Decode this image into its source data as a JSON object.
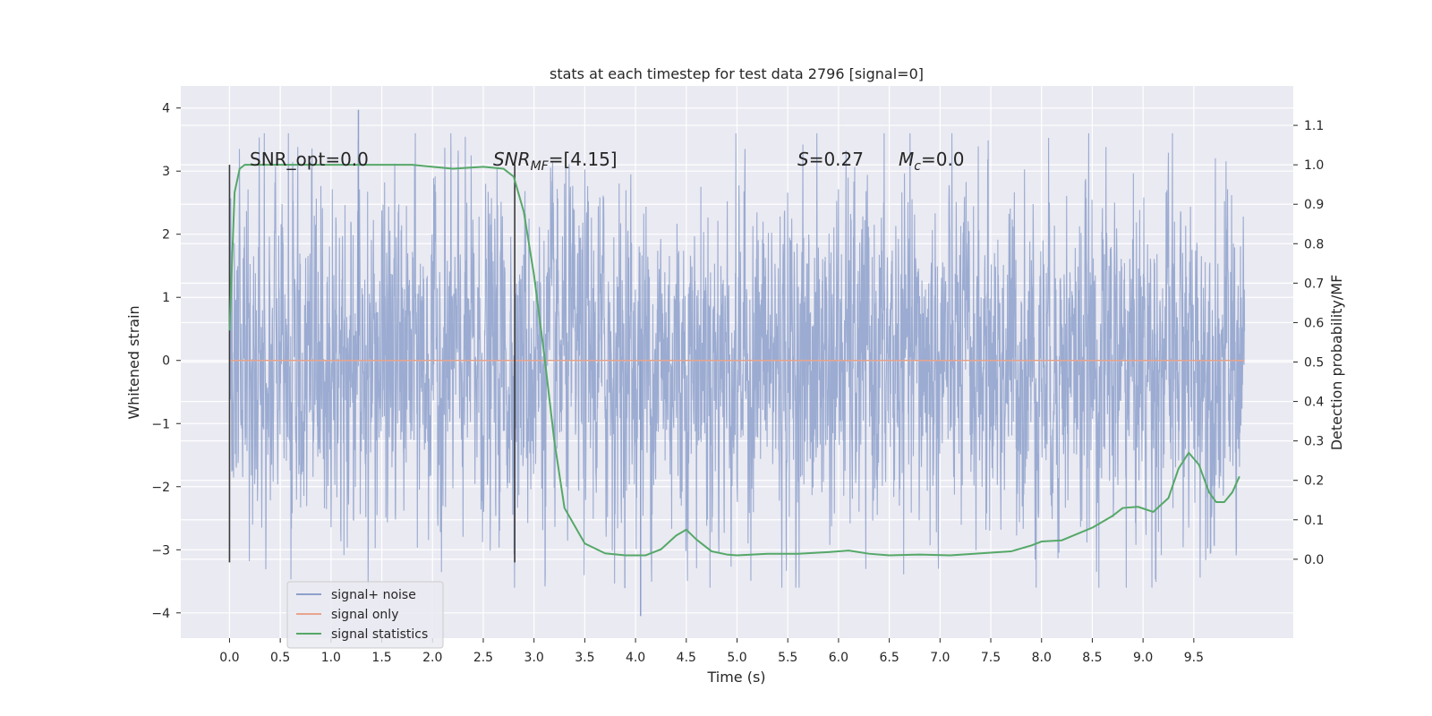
{
  "chart_data": {
    "type": "line",
    "title": "stats at each timestep for test data 2796 [signal=0]",
    "xlabel": "Time (s)",
    "ylabel_left": "Whitened strain",
    "ylabel_right": "Detection probability/MF",
    "xlim": [
      -0.48,
      10.48
    ],
    "ylim_left": [
      -4.4,
      4.35
    ],
    "ylim_right": [
      -0.2,
      1.2
    ],
    "x_ticks": [
      "0.0",
      "0.5",
      "1.0",
      "1.5",
      "2.0",
      "2.5",
      "3.0",
      "3.5",
      "4.0",
      "4.5",
      "5.0",
      "5.5",
      "6.0",
      "6.5",
      "7.0",
      "7.5",
      "8.0",
      "8.5",
      "9.0",
      "9.5"
    ],
    "y_left_ticks": [
      "4",
      "3",
      "2",
      "1",
      "0",
      "−1",
      "−2",
      "−3",
      "−4"
    ],
    "y_right_ticks": [
      "1.1",
      "1.0",
      "0.9",
      "0.8",
      "0.7",
      "0.6",
      "0.5",
      "0.4",
      "0.3",
      "0.2",
      "0.1",
      "0.0"
    ],
    "annotations": {
      "snr_opt": "SNR_opt=0.0",
      "snr_mf_base": "SNR",
      "snr_mf_sub": "MF",
      "snr_mf_val": "=[4.15]",
      "s_base": "S",
      "s_val": "=0.27",
      "mc_base": "M",
      "mc_sub": "c",
      "mc_val": "=0.0"
    },
    "vertical_markers_x": [
      0.0,
      2.81
    ],
    "legend": {
      "position": "lower-left",
      "entries": [
        "signal+ noise",
        "signal only",
        "signal statistics"
      ]
    },
    "series": [
      {
        "name": "signal+ noise",
        "color": "#8da0cb",
        "style": "noise",
        "x_range": [
          0.0,
          10.0
        ],
        "typical_amplitude": 1.3,
        "extremes": [
          3.97,
          -4.05
        ]
      },
      {
        "name": "signal only",
        "color": "#e8a48c",
        "x": [
          0.0,
          10.0
        ],
        "y": [
          0.0,
          0.0
        ]
      },
      {
        "name": "signal statistics",
        "color": "#55a868",
        "axis": "right",
        "x": [
          0.0,
          0.05,
          0.1,
          0.15,
          0.2,
          0.3,
          0.5,
          1.0,
          1.5,
          1.8,
          2.0,
          2.2,
          2.5,
          2.7,
          2.8,
          2.9,
          3.0,
          3.1,
          3.2,
          3.3,
          3.5,
          3.7,
          3.9,
          4.1,
          4.25,
          4.4,
          4.5,
          4.6,
          4.75,
          4.9,
          5.0,
          5.3,
          5.6,
          5.9,
          6.1,
          6.3,
          6.5,
          6.8,
          7.1,
          7.4,
          7.7,
          7.9,
          8.0,
          8.2,
          8.5,
          8.7,
          8.8,
          8.95,
          9.1,
          9.25,
          9.35,
          9.45,
          9.55,
          9.65,
          9.72,
          9.8,
          9.88,
          9.95
        ],
        "y": [
          0.58,
          0.93,
          0.99,
          1.0,
          1.0,
          1.0,
          1.0,
          1.0,
          1.0,
          1.0,
          0.995,
          0.99,
          0.995,
          0.99,
          0.97,
          0.88,
          0.72,
          0.52,
          0.3,
          0.13,
          0.04,
          0.015,
          0.01,
          0.01,
          0.025,
          0.06,
          0.075,
          0.05,
          0.02,
          0.012,
          0.01,
          0.014,
          0.014,
          0.018,
          0.022,
          0.014,
          0.01,
          0.012,
          0.01,
          0.015,
          0.02,
          0.035,
          0.045,
          0.048,
          0.08,
          0.11,
          0.13,
          0.133,
          0.12,
          0.155,
          0.23,
          0.27,
          0.24,
          0.17,
          0.145,
          0.145,
          0.17,
          0.21
        ]
      }
    ]
  }
}
